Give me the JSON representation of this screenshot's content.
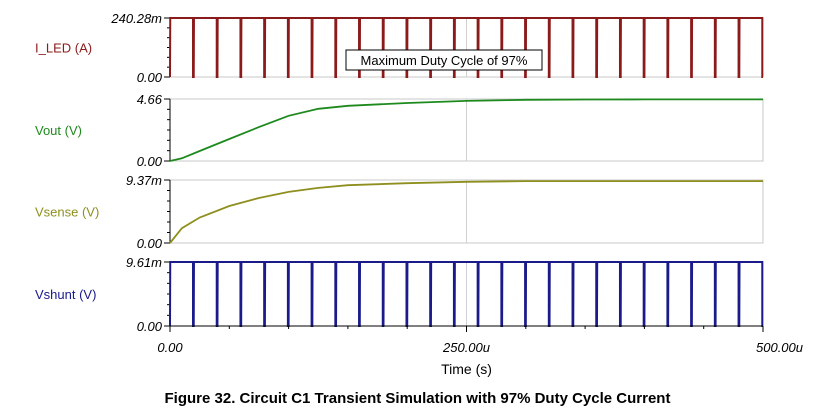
{
  "figure_caption": "Figure 32. Circuit C1 Transient Simulation with 97% Duty Cycle Current",
  "annotation": "Maximum Duty Cycle of 97%",
  "chart_data": [
    {
      "type": "line",
      "ylabel": "I_LED (A)",
      "color": "#8b1a1a",
      "ylim": [
        0,
        0.24028
      ],
      "ytick_labels": [
        "240.28m",
        "0.00"
      ],
      "waveform": "pulse",
      "pulse_period_us": 20,
      "duty_cycle": 0.97,
      "high": 0.24028,
      "low": 0
    },
    {
      "type": "line",
      "ylabel": "Vout (V)",
      "color": "#1e8a1e",
      "ylim": [
        0,
        4.66
      ],
      "ytick_labels": [
        "4.66",
        "0.00"
      ],
      "waveform": "curve",
      "x": [
        0,
        10,
        25,
        50,
        75,
        100,
        125,
        150,
        200,
        250,
        300,
        350,
        400,
        450,
        500
      ],
      "y": [
        0,
        0.2,
        0.75,
        1.65,
        2.55,
        3.4,
        3.92,
        4.15,
        4.36,
        4.52,
        4.6,
        4.62,
        4.63,
        4.63,
        4.63
      ]
    },
    {
      "type": "line",
      "ylabel": "Vsense (V)",
      "color": "#8f8f1f",
      "ylim": [
        0,
        0.00937
      ],
      "ytick_labels": [
        "9.37m",
        "0.00"
      ],
      "waveform": "curve",
      "x": [
        0,
        10,
        25,
        50,
        75,
        100,
        125,
        150,
        200,
        250,
        300,
        350,
        400,
        450,
        500
      ],
      "y": [
        0,
        0.0022,
        0.0038,
        0.0055,
        0.0067,
        0.0076,
        0.0082,
        0.0086,
        0.0089,
        0.0091,
        0.0092,
        0.0092,
        0.0092,
        0.0092,
        0.0092
      ]
    },
    {
      "type": "line",
      "ylabel": "Vshunt (V)",
      "color": "#1a1a8b",
      "ylim": [
        0,
        0.00961
      ],
      "ytick_labels": [
        "9.61m",
        "0.00"
      ],
      "waveform": "pulse",
      "pulse_period_us": 20,
      "duty_cycle": 0.97,
      "high": 0.00961,
      "low": 0
    }
  ],
  "x_axis": {
    "label": "Time (s)",
    "xlim": [
      0,
      500
    ],
    "tick_values": [
      0,
      250,
      500
    ],
    "tick_labels": [
      "0.00",
      "250.00u",
      "500.00u"
    ]
  }
}
